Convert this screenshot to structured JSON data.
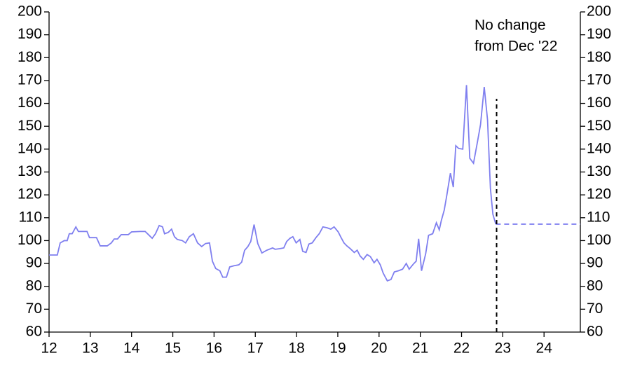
{
  "chart_data": {
    "type": "line",
    "annotation": [
      "No change",
      "from Dec '22"
    ],
    "x": [
      12.0,
      12.2,
      12.27,
      12.37,
      12.44,
      12.49,
      12.56,
      12.65,
      12.71,
      12.85,
      12.92,
      12.98,
      13.15,
      13.24,
      13.41,
      13.51,
      13.58,
      13.66,
      13.75,
      13.92,
      14.0,
      14.21,
      14.33,
      14.41,
      14.5,
      14.58,
      14.67,
      14.75,
      14.8,
      14.89,
      14.97,
      15.04,
      15.11,
      15.23,
      15.31,
      15.4,
      15.5,
      15.6,
      15.7,
      15.79,
      15.89,
      15.96,
      16.04,
      16.14,
      16.21,
      16.3,
      16.38,
      16.48,
      16.6,
      16.67,
      16.74,
      16.82,
      16.89,
      16.97,
      17.06,
      17.16,
      17.28,
      17.42,
      17.48,
      17.6,
      17.69,
      17.76,
      17.84,
      17.91,
      17.99,
      18.08,
      18.15,
      18.23,
      18.3,
      18.38,
      18.47,
      18.55,
      18.64,
      18.74,
      18.83,
      18.91,
      19.01,
      19.08,
      19.15,
      19.22,
      19.3,
      19.4,
      19.47,
      19.54,
      19.62,
      19.71,
      19.79,
      19.88,
      19.95,
      20.03,
      20.1,
      20.2,
      20.29,
      20.37,
      20.47,
      20.57,
      20.66,
      20.73,
      20.83,
      20.9,
      20.96,
      21.03,
      21.13,
      21.2,
      21.3,
      21.39,
      21.46,
      21.51,
      21.58,
      21.64,
      21.73,
      21.8,
      21.86,
      21.93,
      22.03,
      22.12,
      22.2,
      22.29,
      22.39,
      22.46,
      22.55,
      22.63,
      22.7,
      22.76,
      22.83
    ],
    "series": [
      {
        "color": "#7f7fef",
        "values": [
          93.7,
          93.7,
          99,
          100,
          100,
          103,
          103,
          106,
          104,
          104,
          104,
          101.3,
          101.3,
          97.7,
          97.7,
          99,
          100.7,
          100.7,
          102.6,
          102.6,
          103.8,
          104,
          104,
          102.6,
          101,
          103,
          106.6,
          106,
          103,
          103.6,
          105,
          101.7,
          100.5,
          100,
          99,
          101.7,
          103,
          99,
          97.4,
          98.7,
          99,
          91,
          87.8,
          86.8,
          84,
          84,
          88.5,
          89,
          89.4,
          90.6,
          95.7,
          97.4,
          99.6,
          107,
          98.7,
          94.6,
          95.8,
          96.8,
          96.2,
          96.5,
          96.8,
          99.6,
          101,
          101.7,
          99,
          100.5,
          95.3,
          94.8,
          98.5,
          99,
          101.3,
          103,
          106,
          105.6,
          105,
          106,
          103.8,
          101.3,
          99,
          97.7,
          96.5,
          94.8,
          95.8,
          93.3,
          91.8,
          93.9,
          93,
          90.3,
          91.8,
          89.4,
          85.8,
          82.4,
          83,
          86.3,
          86.8,
          87.5,
          90,
          87.5,
          89.7,
          91,
          100.8,
          86.8,
          94.2,
          102.3,
          103,
          107.8,
          104.7,
          108.8,
          113.3,
          119.5,
          129.5,
          123.4,
          141.5,
          140.3,
          140,
          168,
          136,
          133.8,
          143.6,
          150.7,
          167.2,
          152.8,
          122.8,
          111.5,
          107.2
        ]
      },
      {
        "color": "#7f7fef",
        "dashed": true,
        "x": [
          22.83,
          24.88
        ],
        "values": [
          107.2,
          107.2
        ]
      }
    ],
    "vline": {
      "x": 22.85,
      "y": [
        60,
        162
      ],
      "color": "#000000"
    },
    "xlim": [
      12,
      24.88
    ],
    "xticks": [
      12,
      13,
      14,
      15,
      16,
      17,
      18,
      19,
      20,
      21,
      22,
      23,
      24
    ],
    "ylim": [
      60,
      200
    ],
    "yticks": [
      60,
      70,
      80,
      90,
      100,
      110,
      120,
      130,
      140,
      150,
      160,
      170,
      180,
      190,
      200
    ],
    "y2lim": [
      60,
      200
    ],
    "y2ticks": [
      60,
      70,
      80,
      90,
      100,
      110,
      120,
      130,
      140,
      150,
      160,
      170,
      180,
      190,
      200
    ]
  }
}
